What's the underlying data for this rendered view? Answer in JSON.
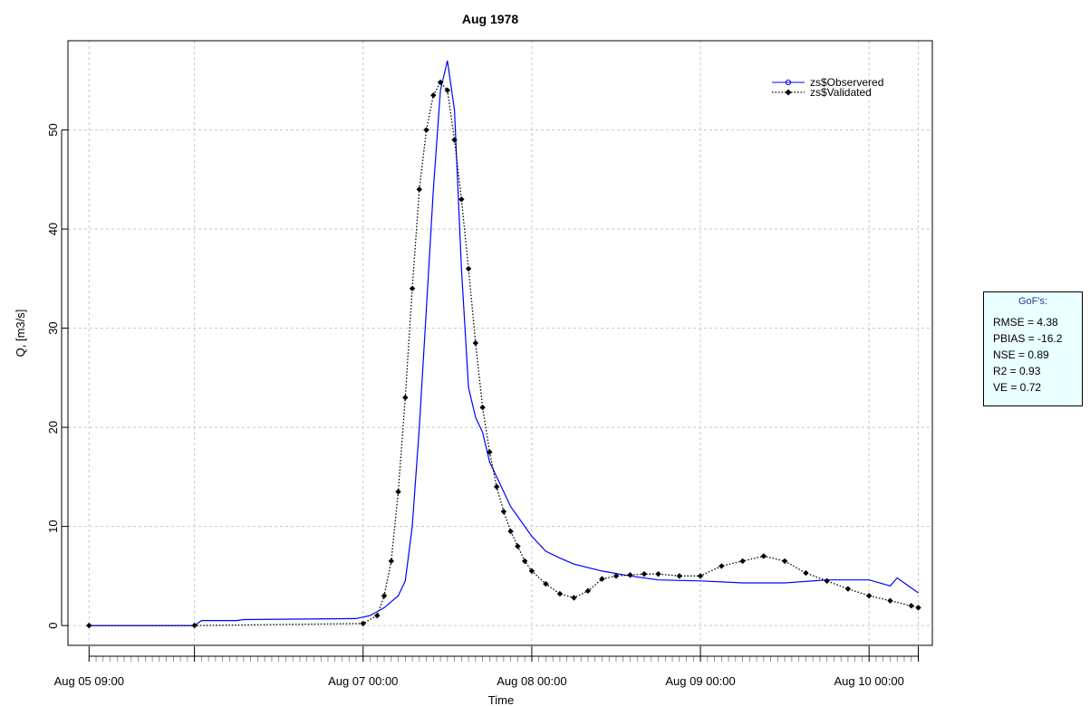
{
  "chart_data": {
    "type": "line",
    "title": "Aug 1978",
    "xlabel": "Time",
    "ylabel": "Q, [m3/s]",
    "xlim": [
      "1978-08-05 09:00",
      "1978-08-10 09:00"
    ],
    "ylim": [
      -2,
      59
    ],
    "grid": true,
    "legend_position": "top-right",
    "x_ticks": [
      {
        "x": "1978-08-05 09:00",
        "label": "Aug 05 09:00"
      },
      {
        "x": "1978-08-06 00:00",
        "label": ""
      },
      {
        "x": "1978-08-07 00:00",
        "label": "Aug 07 00:00"
      },
      {
        "x": "1978-08-08 00:00",
        "label": "Aug 08 00:00"
      },
      {
        "x": "1978-08-09 00:00",
        "label": "Aug 09 00:00"
      },
      {
        "x": "1978-08-10 00:00",
        "label": "Aug 10 00:00"
      },
      {
        "x": "1978-08-10 07:00",
        "label": ""
      }
    ],
    "y_ticks": [
      0,
      10,
      20,
      30,
      40,
      50
    ],
    "series": [
      {
        "name": "zs$Observered",
        "color": "#0000ff",
        "line": "solid",
        "marker": "circle",
        "x": [
          "1978-08-05 09:00",
          "1978-08-06 00:00",
          "1978-08-06 01:00",
          "1978-08-06 06:00",
          "1978-08-06 07:00",
          "1978-08-06 23:00",
          "1978-08-07 01:00",
          "1978-08-07 03:00",
          "1978-08-07 05:00",
          "1978-08-07 06:00",
          "1978-08-07 07:00",
          "1978-08-07 08:00",
          "1978-08-07 09:00",
          "1978-08-07 10:00",
          "1978-08-07 11:00",
          "1978-08-07 12:00",
          "1978-08-07 13:00",
          "1978-08-07 14:00",
          "1978-08-07 15:00",
          "1978-08-07 16:00",
          "1978-08-07 17:00",
          "1978-08-07 18:00",
          "1978-08-07 19:00",
          "1978-08-07 20:00",
          "1978-08-07 21:00",
          "1978-08-07 22:00",
          "1978-08-08 00:00",
          "1978-08-08 02:00",
          "1978-08-08 04:00",
          "1978-08-08 06:00",
          "1978-08-08 10:00",
          "1978-08-08 14:00",
          "1978-08-08 18:00",
          "1978-08-09 00:00",
          "1978-08-09 06:00",
          "1978-08-09 12:00",
          "1978-08-09 18:00",
          "1978-08-10 00:00",
          "1978-08-10 03:00",
          "1978-08-10 04:00",
          "1978-08-10 05:00",
          "1978-08-10 06:00",
          "1978-08-10 07:00"
        ],
        "y": [
          0,
          0,
          0.5,
          0.5,
          0.6,
          0.7,
          1.0,
          1.8,
          3.0,
          4.5,
          10,
          20,
          32,
          44,
          54,
          57,
          52,
          36,
          24,
          21,
          19.5,
          16.5,
          15,
          13.5,
          12,
          11,
          9,
          7.5,
          6.8,
          6.2,
          5.5,
          5.0,
          4.6,
          4.5,
          4.3,
          4.3,
          4.6,
          4.6,
          4.0,
          4.8,
          4.3,
          3.8,
          3.3
        ]
      },
      {
        "name": "zs$Validated",
        "color": "#000000",
        "line": "dotted",
        "marker": "diamond",
        "x": [
          "1978-08-05 09:00",
          "1978-08-06 00:00",
          "1978-08-07 00:00",
          "1978-08-07 02:00",
          "1978-08-07 03:00",
          "1978-08-07 04:00",
          "1978-08-07 05:00",
          "1978-08-07 06:00",
          "1978-08-07 07:00",
          "1978-08-07 08:00",
          "1978-08-07 09:00",
          "1978-08-07 10:00",
          "1978-08-07 11:00",
          "1978-08-07 12:00",
          "1978-08-07 13:00",
          "1978-08-07 14:00",
          "1978-08-07 15:00",
          "1978-08-07 16:00",
          "1978-08-07 17:00",
          "1978-08-07 18:00",
          "1978-08-07 19:00",
          "1978-08-07 20:00",
          "1978-08-07 21:00",
          "1978-08-07 22:00",
          "1978-08-07 23:00",
          "1978-08-08 00:00",
          "1978-08-08 02:00",
          "1978-08-08 04:00",
          "1978-08-08 06:00",
          "1978-08-08 08:00",
          "1978-08-08 10:00",
          "1978-08-08 12:00",
          "1978-08-08 14:00",
          "1978-08-08 16:00",
          "1978-08-08 18:00",
          "1978-08-08 21:00",
          "1978-08-09 00:00",
          "1978-08-09 03:00",
          "1978-08-09 06:00",
          "1978-08-09 09:00",
          "1978-08-09 12:00",
          "1978-08-09 15:00",
          "1978-08-09 18:00",
          "1978-08-09 21:00",
          "1978-08-10 00:00",
          "1978-08-10 03:00",
          "1978-08-10 06:00",
          "1978-08-10 07:00"
        ],
        "y": [
          0,
          0,
          0.2,
          1.0,
          3.0,
          6.5,
          13.5,
          23,
          34,
          44,
          50,
          53.5,
          54.8,
          54,
          49,
          43,
          36,
          28.5,
          22,
          17.5,
          14,
          11.5,
          9.5,
          8,
          6.5,
          5.5,
          4.2,
          3.2,
          2.8,
          3.5,
          4.7,
          5.0,
          5.1,
          5.2,
          5.2,
          5.0,
          5.0,
          6.0,
          6.5,
          7.0,
          6.5,
          5.3,
          4.5,
          3.7,
          3.0,
          2.5,
          2.0,
          1.8
        ]
      }
    ]
  },
  "gof": {
    "title": "GoF's:",
    "lines": [
      "RMSE = 4.38",
      "PBIAS = -16.2",
      "NSE = 0.89",
      "R2 = 0.93",
      "VE = 0.72"
    ]
  }
}
